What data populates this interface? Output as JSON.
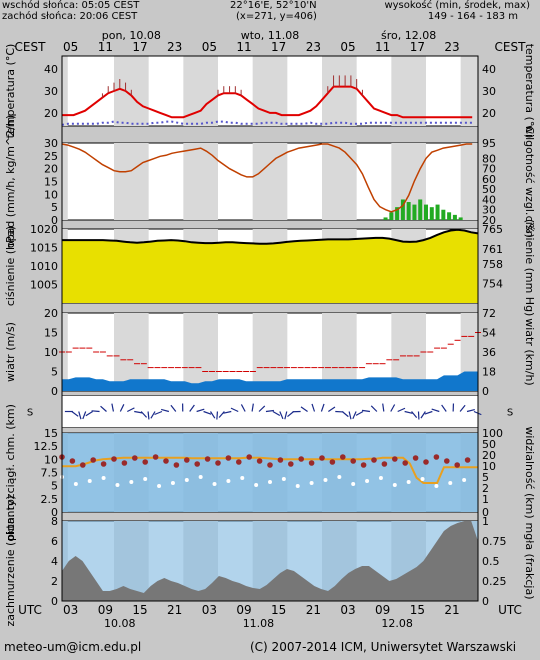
{
  "header": {
    "sunrise": "wschód słońca: 05:05 CEST",
    "sunset": "zachód słońca: 20:06 CEST",
    "coords": "22°16'E, 52°10'N",
    "grid": "(x=271, y=406)",
    "alt_label": "wysokość (min, środek, max)",
    "alt_values": "149 - 164 - 183 m"
  },
  "timezone_top": "CEST",
  "timezone_bottom": "UTC",
  "cest_hours": [
    "05",
    "11",
    "17",
    "23",
    "05",
    "11",
    "17",
    "23",
    "05",
    "11",
    "17",
    "23"
  ],
  "cest_days": [
    "pon, 10.08",
    "wto, 11.08",
    "śro, 12.08"
  ],
  "utc_hours": [
    "03",
    "09",
    "15",
    "21",
    "03",
    "09",
    "15",
    "21",
    "03",
    "09",
    "15",
    "21"
  ],
  "utc_days": [
    "10.08",
    "11.08",
    "12.08"
  ],
  "footer": {
    "email": "meteo-um@icm.edu.pl",
    "copyright": "(C) 2007-2014 ICM, Uniwersytet Warszawski"
  },
  "colors": {
    "shade": "#d9d9d9",
    "temp_line": "#e00000",
    "dew_point": "#5555cc",
    "pressure_line": "#000000",
    "pressure_fill": "#e8e000",
    "precip_bar": "#22aa22",
    "humidity_line": "#c04000",
    "wind_fill": "#1177cc",
    "wind_gust": "#d00000",
    "vis_panel": "#7fb8e0",
    "cloud_fill": "#777777"
  },
  "chart_data": [
    {
      "type": "line",
      "name": "temperature",
      "ylabel_left": "temperatura (°C)",
      "ylabel_right": "temperatura (°C)",
      "ylim": [
        14,
        46
      ],
      "ticks": [
        20,
        30,
        40
      ],
      "x": [
        0,
        2,
        4,
        6,
        8,
        10,
        12,
        14,
        16,
        18,
        20,
        22,
        24,
        26,
        28,
        30,
        32,
        34,
        36,
        38,
        40,
        42,
        44,
        46,
        48,
        50,
        52,
        54,
        56,
        58,
        60,
        62,
        64,
        66,
        68,
        70,
        72,
        74,
        76,
        78,
        80,
        82,
        84,
        86,
        88,
        90,
        92,
        94,
        96,
        98,
        100,
        102,
        104,
        106,
        108,
        110,
        112,
        114,
        116,
        118,
        120,
        122,
        124,
        126,
        128,
        130,
        132,
        134,
        136,
        138,
        140,
        142
      ],
      "series": [
        {
          "values": [
            19,
            19,
            19,
            20,
            21,
            23,
            25,
            27,
            29,
            30,
            31,
            30,
            28,
            25,
            23,
            22,
            21,
            20,
            19,
            18,
            18,
            18,
            19,
            20,
            21,
            24,
            26,
            28,
            29,
            29,
            29,
            28,
            26,
            24,
            22,
            21,
            20,
            20,
            19,
            19,
            19,
            19,
            20,
            21,
            23,
            26,
            29,
            32,
            32,
            32,
            32,
            31,
            28,
            25,
            22,
            21,
            20,
            19,
            19,
            18,
            18,
            18,
            18,
            18,
            18,
            18,
            18,
            18,
            18,
            18,
            18,
            18
          ]
        },
        {
          "values": [
            14.5,
            15,
            15,
            15,
            15,
            15,
            15,
            15.5,
            15.5,
            16,
            15.5,
            15.5,
            15,
            15,
            15,
            15,
            15.5,
            15.5,
            16,
            16,
            15.5,
            15,
            15,
            15,
            15,
            15.5,
            15.5,
            16,
            16,
            15.5,
            15.5,
            15,
            15,
            15,
            15,
            15.5,
            15.5,
            15.5,
            15,
            15,
            15,
            15,
            15,
            15.5,
            15,
            15,
            15,
            15.5,
            15.5,
            15.5,
            15,
            15,
            15,
            15.5,
            15.5,
            15.5,
            15.5,
            15.5,
            15.5,
            15.5,
            15.5,
            15.5,
            15.5,
            15.5,
            15.5,
            15.5,
            15.5,
            15.5,
            15.5,
            15.5,
            15.5,
            15.5
          ]
        }
      ]
    },
    {
      "type": "line",
      "name": "precipitation-humidity",
      "ylabel_left": "opad (mm/h, kg/m^2/h)",
      "ylabel_right": "wilgotność wzgl. (%)",
      "ylim_left": [
        0,
        30
      ],
      "ticks_left": [
        0,
        5,
        10,
        15,
        20,
        25,
        30
      ],
      "ylim_right": [
        20,
        95
      ],
      "ticks_right": [
        20,
        30,
        40,
        50,
        60,
        70,
        80,
        95
      ],
      "humidity": [
        94,
        93,
        91,
        89,
        86,
        82,
        78,
        74,
        71,
        68,
        67,
        67,
        68,
        72,
        76,
        78,
        80,
        82,
        83,
        85,
        86,
        87,
        88,
        89,
        90,
        87,
        83,
        78,
        74,
        70,
        67,
        64,
        62,
        62,
        65,
        70,
        75,
        80,
        83,
        86,
        88,
        90,
        91,
        92,
        93,
        94,
        94,
        92,
        90,
        86,
        80,
        74,
        65,
        52,
        40,
        33,
        30,
        28,
        30,
        34,
        44,
        58,
        70,
        80,
        86,
        88,
        90,
        91,
        92,
        93,
        94,
        94
      ],
      "precip": [
        0,
        0,
        0,
        0,
        0,
        0,
        0,
        0,
        0,
        0,
        0,
        0,
        0,
        0,
        0,
        0,
        0,
        0,
        0,
        0,
        0,
        0,
        0,
        0,
        0,
        0,
        0,
        0,
        0,
        0,
        0,
        0,
        0,
        0,
        0,
        0,
        0,
        0,
        0,
        0,
        0,
        0,
        0,
        0,
        0,
        0,
        0,
        0,
        0,
        0,
        0,
        0,
        0,
        0,
        0,
        0,
        1,
        3,
        5,
        8,
        7,
        6,
        8,
        6,
        5,
        6,
        4,
        3,
        2,
        1,
        0,
        0
      ]
    },
    {
      "type": "area",
      "name": "pressure",
      "ylabel_left": "ciśnienie (hPa)",
      "ylabel_right": "ciśnienie (mm Hg)",
      "ylim_left": [
        1000,
        1020
      ],
      "ticks_left": [
        1005,
        1010,
        1015,
        1020
      ],
      "ticks_right": [
        754,
        758,
        761,
        765
      ],
      "values": [
        1017,
        1017,
        1017,
        1017,
        1017,
        1017,
        1017,
        1016.9,
        1016.8,
        1016.6,
        1016.4,
        1016.3,
        1016.4,
        1016.6,
        1016.8,
        1016.9,
        1017,
        1016.9,
        1016.7,
        1016.4,
        1016.3,
        1016.2,
        1016.2,
        1016.3,
        1016.4,
        1016.4,
        1016.3,
        1016.2,
        1016.1,
        1016.0,
        1016.0,
        1016.1,
        1016.3,
        1016.5,
        1016.7,
        1016.8,
        1016.9,
        1017,
        1017.1,
        1017.2,
        1017.2,
        1017.2,
        1017.2,
        1017.3,
        1017.4,
        1017.5,
        1017.6,
        1017.6,
        1017.4,
        1017.0,
        1016.6,
        1016.5,
        1016.6,
        1017.0,
        1017.6,
        1018.4,
        1019.1,
        1019.6,
        1019.8,
        1019.6,
        1019.1,
        1018.8
      ]
    },
    {
      "type": "area",
      "name": "wind",
      "ylabel_left": "wiatr (m/s)",
      "ylabel_right": "wiatr (km/h)",
      "ylim_left": [
        0,
        20
      ],
      "ticks_left": [
        0,
        5,
        10,
        15,
        20
      ],
      "ticks_right": [
        0,
        18,
        36,
        54,
        72
      ],
      "speed": [
        3,
        3,
        3.5,
        3.5,
        3.5,
        3,
        3,
        2.5,
        2.5,
        2.5,
        3,
        3,
        3,
        3,
        3,
        3,
        2.5,
        2.5,
        2.5,
        2,
        2,
        2.5,
        2.5,
        3,
        3,
        3,
        3,
        2.5,
        2.5,
        2.5,
        2.5,
        2.5,
        2.5,
        3,
        3,
        3,
        3,
        3,
        3,
        3,
        3,
        3,
        3,
        3,
        3,
        3.5,
        3.5,
        3.5,
        3.5,
        3.5,
        3,
        3,
        3,
        3,
        3,
        3,
        4,
        4,
        4,
        5,
        5,
        5
      ],
      "gust": [
        10,
        10,
        11,
        11,
        11,
        10,
        10,
        9,
        9,
        8,
        8,
        7,
        7,
        6,
        6,
        6,
        6,
        6,
        6,
        6,
        6,
        5,
        5,
        5,
        5,
        5,
        5,
        5,
        5,
        6,
        6,
        6,
        6,
        6,
        6,
        6,
        6,
        6,
        6,
        6,
        6,
        6,
        6,
        6,
        6,
        7,
        7,
        7,
        8,
        8,
        9,
        9,
        9,
        10,
        10,
        11,
        11,
        12,
        13,
        14,
        14,
        15
      ]
    },
    {
      "type": "line",
      "name": "visibility-clouds",
      "ylabel_left": "pion. rozciągł. chm. (km)",
      "ylabel_right": "widzialność (km)",
      "ylim_left": [
        0,
        15
      ],
      "ticks_left": [
        0,
        2.5,
        5,
        7.5,
        10,
        12.5,
        15
      ],
      "ticks_right": [
        0,
        1,
        2,
        5,
        10,
        20,
        50,
        100
      ],
      "visibility": [
        8.7,
        8.7,
        8.7,
        9,
        9.4,
        9.8,
        10,
        10.1,
        10.2,
        10.3,
        10.3,
        10.3,
        10.3,
        10.3,
        10.3,
        10.3,
        10.3,
        10.3,
        10.3,
        10.2,
        10.2,
        10.2,
        10.2,
        10.2,
        10.2,
        10.2,
        10.2,
        10.3,
        10.3,
        10.3,
        10.2,
        10.1,
        10,
        10,
        10,
        10,
        10,
        10,
        10,
        10,
        10,
        10,
        10,
        10,
        10,
        10.1,
        10.1,
        10.3,
        10.3,
        10.3,
        10.3,
        9.2,
        6.5,
        5.5,
        5.5,
        5.5,
        8.5,
        8.5,
        8.5,
        8.5,
        8.5,
        8.5
      ]
    },
    {
      "type": "area",
      "name": "cloud-cover",
      "ylabel_left": "zachmurzenie (oktanty)",
      "ylabel_right": "mgła (frakcja)",
      "ylim_left": [
        0,
        8
      ],
      "ticks_left": [
        0,
        2,
        4,
        6,
        8
      ],
      "ticks_right": [
        0,
        0.25,
        0.5,
        0.75,
        1
      ],
      "clouds": [
        3,
        4,
        4.5,
        4,
        3,
        2,
        1,
        1,
        1.2,
        1.5,
        1.2,
        1,
        0.8,
        1.5,
        2,
        2.3,
        2,
        1.8,
        1.5,
        1.2,
        1,
        1.2,
        1.8,
        2.5,
        2.3,
        2,
        1.8,
        1.5,
        1.3,
        1.2,
        1.6,
        2.2,
        2.8,
        3.2,
        3,
        2.5,
        2,
        1.5,
        1.2,
        1,
        1.5,
        2.2,
        2.8,
        3.2,
        3.5,
        3.5,
        3,
        2.5,
        2,
        2.2,
        2.6,
        3,
        3.4,
        4,
        5,
        6,
        7,
        7.5,
        7.8,
        8,
        8,
        6
      ]
    }
  ]
}
